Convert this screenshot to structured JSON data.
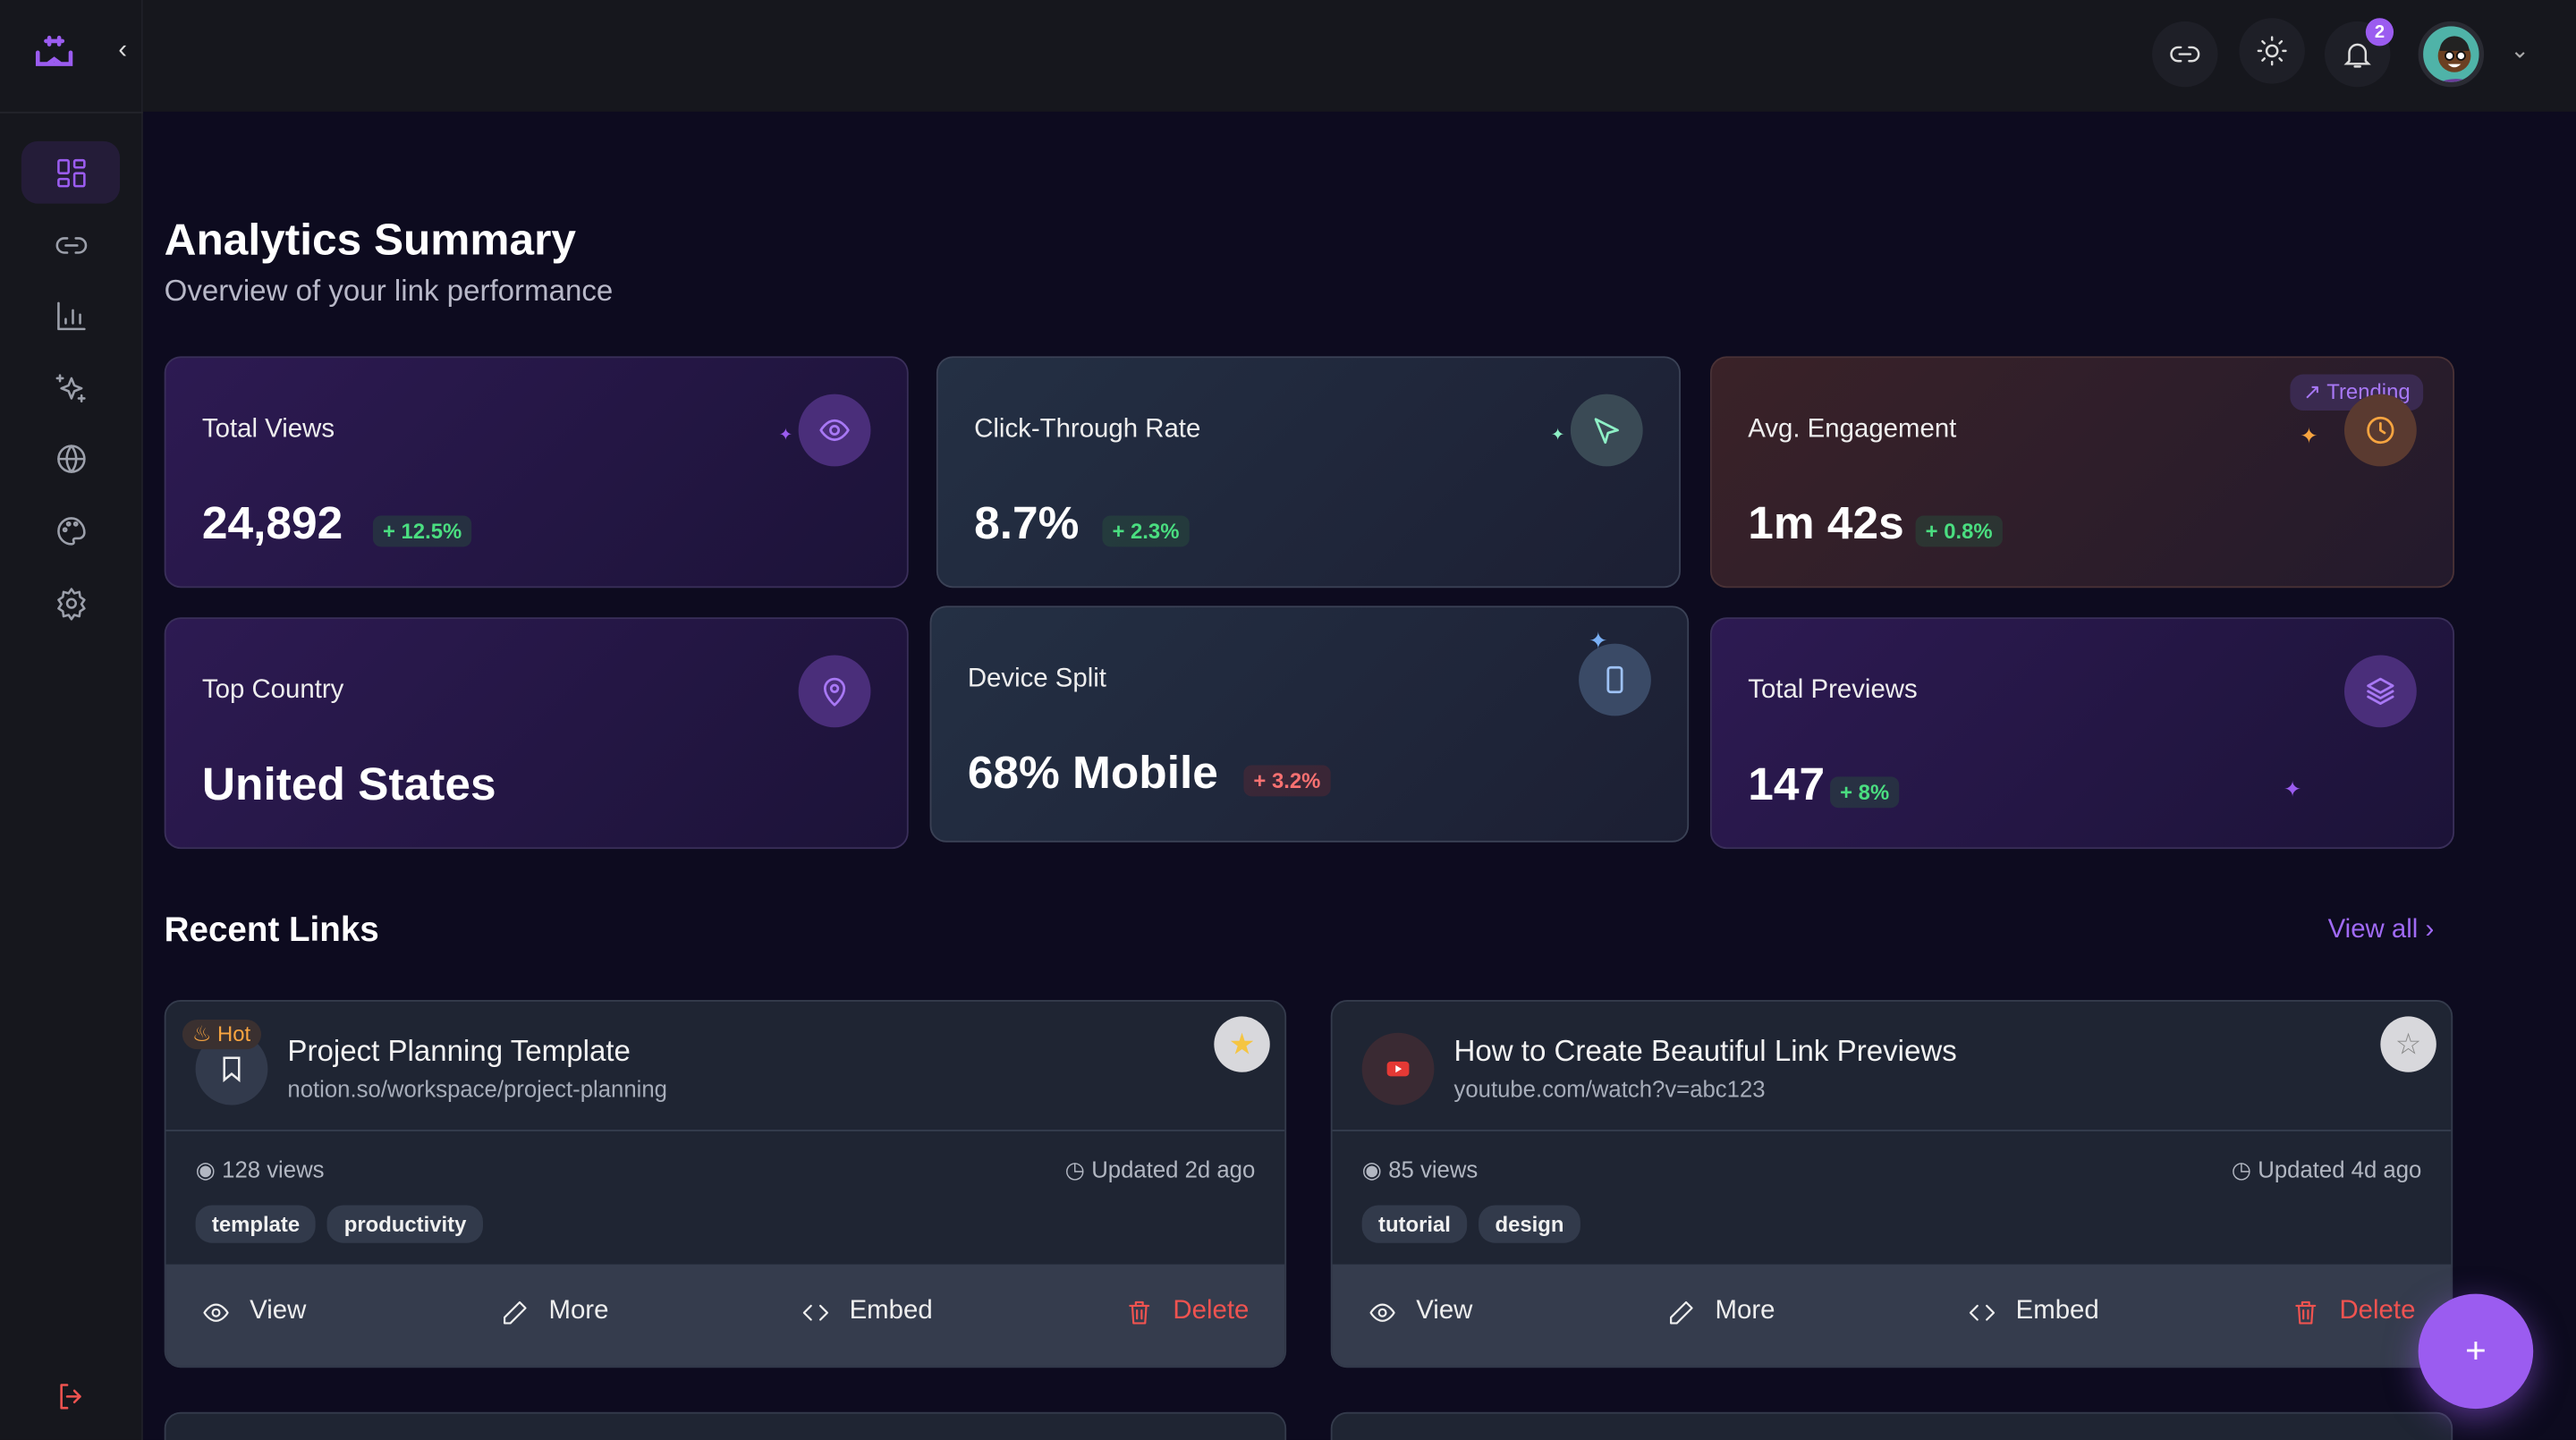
{
  "header": {
    "notifications": "2"
  },
  "page": {
    "title": "Analytics Summary",
    "subtitle": "Overview of your link performance"
  },
  "stats": [
    {
      "label": "Total Views",
      "value": "24,892",
      "change": "+ 12.5%"
    },
    {
      "label": "Click-Through Rate",
      "value": "8.7%",
      "change": "+ 2.3%"
    },
    {
      "label": "Avg. Engagement",
      "value": "1m 42s",
      "change": "+ 0.8%",
      "badge": "Trending"
    },
    {
      "label": "Top Country",
      "value": "United States"
    },
    {
      "label": "Device Split",
      "value": "68% Mobile",
      "change": "+ 3.2%"
    },
    {
      "label": "Total Previews",
      "value": "147",
      "change": "+ 8%"
    }
  ],
  "recent": {
    "title": "Recent Links",
    "view_all": "View all"
  },
  "links": [
    {
      "title": "Project Planning Template",
      "url": "notion.so/workspace/project-planning",
      "views": "128 views",
      "updated": "Updated 2d ago",
      "tags": [
        "template",
        "productivity"
      ],
      "hot": "Hot",
      "starred": true
    },
    {
      "title": "How to Create Beautiful Link Previews",
      "url": "youtube.com/watch?v=abc123",
      "views": "85 views",
      "updated": "Updated 4d ago",
      "tags": [
        "tutorial",
        "design"
      ],
      "starred": false
    }
  ],
  "actions": {
    "view": "View",
    "more": "More",
    "embed": "Embed",
    "delete": "Delete"
  },
  "fab": "+"
}
